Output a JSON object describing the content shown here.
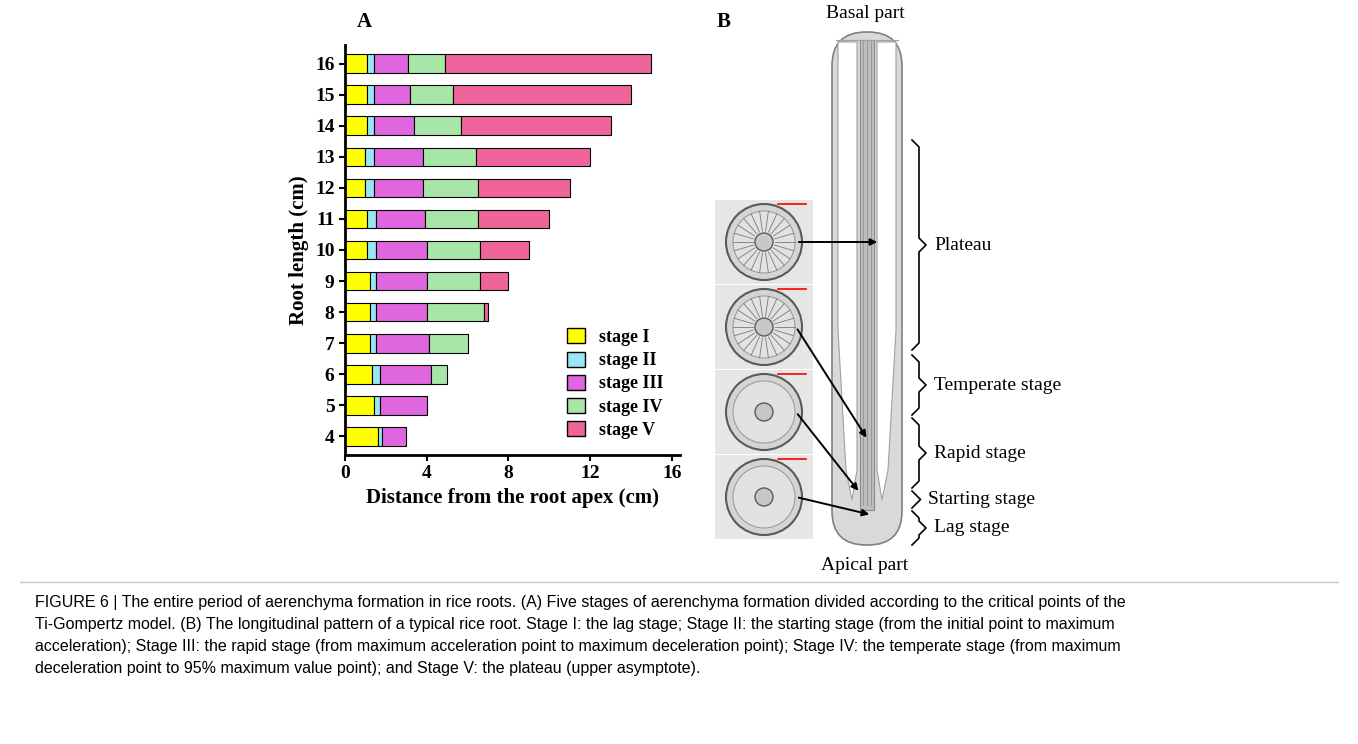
{
  "figure": {
    "panel_labels": [
      "A",
      "B"
    ]
  },
  "chart_data": {
    "type": "bar",
    "orientation": "horizontal",
    "stacked": true,
    "ylabel": "Root length (cm)",
    "xlabel": "Distance from the root apex (cm)",
    "categories": [
      "4",
      "5",
      "6",
      "7",
      "8",
      "9",
      "10",
      "11",
      "12",
      "13",
      "14",
      "15",
      "16"
    ],
    "series": [
      {
        "name": "stage I",
        "color": "#ffff00",
        "values": [
          1.6,
          1.4,
          1.3,
          1.2,
          1.2,
          1.2,
          1.1,
          1.1,
          1.0,
          1.0,
          1.1,
          1.1,
          1.1
        ]
      },
      {
        "name": "stage II",
        "color": "#99e6f5",
        "values": [
          0.2,
          0.3,
          0.4,
          0.3,
          0.3,
          0.3,
          0.4,
          0.4,
          0.4,
          0.4,
          0.3,
          0.3,
          0.3
        ]
      },
      {
        "name": "stage III",
        "color": "#e066e0",
        "values": [
          1.2,
          2.3,
          2.5,
          2.6,
          2.5,
          2.5,
          2.5,
          2.4,
          2.4,
          2.4,
          2.0,
          1.8,
          1.7
        ]
      },
      {
        "name": "stage IV",
        "color": "#a8e6a8",
        "values": [
          null,
          null,
          0.8,
          1.9,
          2.8,
          2.6,
          2.6,
          2.6,
          2.7,
          2.6,
          2.3,
          2.1,
          1.8
        ]
      },
      {
        "name": "stage V",
        "color": "#f0649c",
        "values": [
          null,
          null,
          null,
          null,
          0.2,
          1.4,
          2.4,
          3.5,
          4.5,
          5.6,
          7.3,
          8.7,
          10.1
        ]
      }
    ],
    "xlim": [
      0,
      16.4
    ],
    "xticks": [
      0,
      4,
      8,
      12,
      16
    ],
    "legend": "lower right"
  },
  "diagram": {
    "top_label": "Basal part",
    "bottom_label": "Apical part",
    "zones": [
      "Plateau",
      "Temperate stage",
      "Rapid stage",
      "Starting stage",
      "Lag stage"
    ]
  },
  "caption": {
    "lines": [
      "FIGURE 6 | The entire period of aerenchyma formation in rice roots. (A) Five stages of aerenchyma formation divided according to the critical points of the",
      "Ti-Gompertz model. (B) The longitudinal pattern of a typical rice root. Stage I: the lag stage; Stage II: the starting stage (from the initial point to maximum",
      "acceleration); Stage III: the rapid stage (from maximum acceleration point to maximum deceleration point); Stage IV: the temperate stage (from maximum",
      "deceleration point to 95% maximum value point); and Stage V: the plateau (upper asymptote)."
    ]
  }
}
